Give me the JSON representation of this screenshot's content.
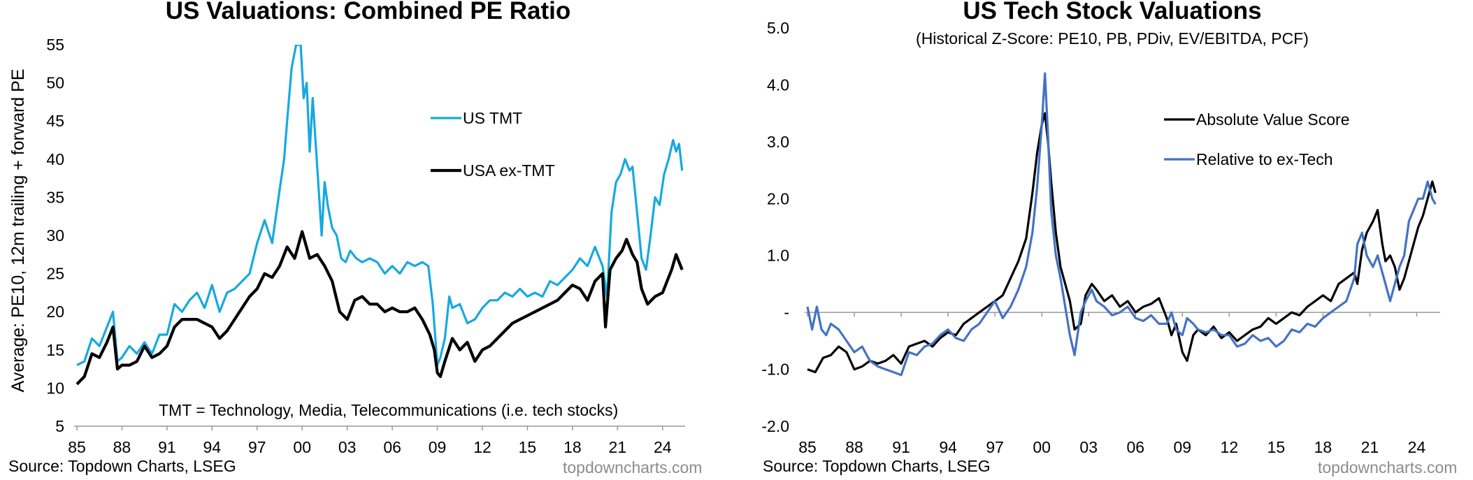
{
  "chart_data": [
    {
      "type": "line",
      "title": "US Valuations: Combined PE Ratio",
      "ylabel": "Average: PE10, 12m trailing + forward PE",
      "xlabel": "",
      "xlim": [
        1985,
        2025.5
      ],
      "ylim": [
        5,
        55
      ],
      "y_ticks": [
        5,
        10,
        15,
        20,
        25,
        30,
        35,
        40,
        45,
        50,
        55
      ],
      "y_tick_labels": [
        "5",
        "10",
        "15",
        "20",
        "25",
        "30",
        "35",
        "40",
        "45",
        "50",
        "55"
      ],
      "x_ticks": [
        1985,
        1988,
        1991,
        1994,
        1997,
        2000,
        2003,
        2006,
        2009,
        2012,
        2015,
        2018,
        2021,
        2024
      ],
      "x_tick_labels": [
        "85",
        "88",
        "91",
        "94",
        "97",
        "00",
        "03",
        "06",
        "09",
        "12",
        "15",
        "18",
        "21",
        "24"
      ],
      "grid": false,
      "legend": "upper-right",
      "annotation": "TMT = Technology, Media, Telecommunications  (i.e. tech stocks)",
      "source": "Source: Topdown Charts, LSEG",
      "brand": "topdowncharts.com",
      "series": [
        {
          "name": "US TMT",
          "color": "#16A9E1",
          "x": [
            1985.0,
            1985.5,
            1986.0,
            1986.5,
            1987.0,
            1987.4,
            1987.7,
            1988.0,
            1988.5,
            1989.0,
            1989.5,
            1990.0,
            1990.5,
            1991.0,
            1991.5,
            1992.0,
            1992.5,
            1993.0,
            1993.5,
            1994.0,
            1994.5,
            1995.0,
            1995.5,
            1996.0,
            1996.5,
            1997.0,
            1997.5,
            1998.0,
            1998.5,
            1998.8,
            1999.0,
            1999.3,
            1999.6,
            1999.9,
            2000.1,
            2000.3,
            2000.5,
            2000.7,
            2000.9,
            2001.1,
            2001.3,
            2001.5,
            2001.7,
            2002.0,
            2002.3,
            2002.6,
            2002.9,
            2003.2,
            2003.6,
            2004.0,
            2004.5,
            2005.0,
            2005.5,
            2006.0,
            2006.5,
            2007.0,
            2007.5,
            2008.0,
            2008.4,
            2008.7,
            2009.0,
            2009.2,
            2009.5,
            2009.8,
            2010.0,
            2010.5,
            2011.0,
            2011.5,
            2012.0,
            2012.5,
            2013.0,
            2013.5,
            2014.0,
            2014.5,
            2015.0,
            2015.5,
            2016.0,
            2016.5,
            2017.0,
            2017.5,
            2018.0,
            2018.5,
            2019.0,
            2019.5,
            2020.0,
            2020.3,
            2020.6,
            2020.9,
            2021.2,
            2021.5,
            2021.8,
            2022.0,
            2022.3,
            2022.6,
            2022.9,
            2023.2,
            2023.5,
            2023.8,
            2024.1,
            2024.4,
            2024.7,
            2024.9,
            2025.1,
            2025.3
          ],
          "values": [
            13.0,
            13.5,
            16.5,
            15.5,
            18.0,
            20.0,
            13.5,
            14.0,
            15.5,
            14.5,
            16.0,
            14.5,
            17.0,
            17.0,
            21.0,
            20.0,
            21.5,
            22.5,
            20.5,
            23.5,
            20.0,
            22.5,
            23.0,
            24.0,
            25.0,
            29.0,
            32.0,
            29.0,
            36.0,
            40.0,
            45.0,
            52.0,
            55.0,
            55.0,
            48.0,
            50.0,
            41.0,
            48.0,
            42.0,
            36.0,
            30.0,
            37.0,
            34.0,
            31.0,
            30.0,
            27.0,
            26.5,
            28.0,
            27.0,
            26.5,
            27.0,
            26.5,
            25.0,
            26.0,
            25.0,
            26.5,
            26.0,
            26.5,
            26.0,
            21.0,
            13.0,
            14.0,
            16.5,
            22.0,
            20.5,
            21.0,
            18.5,
            19.0,
            20.5,
            21.5,
            21.5,
            22.5,
            22.0,
            23.0,
            22.0,
            22.5,
            22.0,
            24.0,
            23.5,
            24.5,
            25.5,
            27.0,
            26.0,
            28.5,
            26.0,
            22.0,
            33.0,
            37.0,
            38.0,
            40.0,
            38.5,
            39.0,
            33.0,
            27.0,
            25.5,
            30.0,
            35.0,
            34.0,
            38.0,
            40.0,
            42.5,
            41.0,
            42.0,
            38.5
          ]
        },
        {
          "name": "USA ex-TMT",
          "color": "#000000",
          "x": [
            1985.0,
            1985.5,
            1986.0,
            1986.5,
            1987.0,
            1987.4,
            1987.7,
            1988.0,
            1988.5,
            1989.0,
            1989.5,
            1990.0,
            1990.5,
            1991.0,
            1991.5,
            1992.0,
            1992.5,
            1993.0,
            1993.5,
            1994.0,
            1994.5,
            1995.0,
            1995.5,
            1996.0,
            1996.5,
            1997.0,
            1997.5,
            1998.0,
            1998.5,
            1999.0,
            1999.5,
            2000.0,
            2000.5,
            2001.0,
            2001.5,
            2002.0,
            2002.5,
            2003.0,
            2003.5,
            2004.0,
            2004.5,
            2005.0,
            2005.5,
            2006.0,
            2006.5,
            2007.0,
            2007.5,
            2008.0,
            2008.5,
            2008.8,
            2009.0,
            2009.2,
            2009.5,
            2010.0,
            2010.5,
            2011.0,
            2011.5,
            2012.0,
            2012.5,
            2013.0,
            2013.5,
            2014.0,
            2014.5,
            2015.0,
            2015.5,
            2016.0,
            2016.5,
            2017.0,
            2017.5,
            2018.0,
            2018.5,
            2019.0,
            2019.5,
            2020.0,
            2020.2,
            2020.5,
            2020.9,
            2021.3,
            2021.6,
            2022.0,
            2022.3,
            2022.6,
            2023.0,
            2023.5,
            2024.0,
            2024.3,
            2024.6,
            2024.9,
            2025.1,
            2025.3
          ],
          "values": [
            10.5,
            11.5,
            14.5,
            14.0,
            16.0,
            18.0,
            12.5,
            13.0,
            13.0,
            13.5,
            15.5,
            14.0,
            14.5,
            15.5,
            18.0,
            19.0,
            19.0,
            19.0,
            18.5,
            18.0,
            16.5,
            17.5,
            19.0,
            20.5,
            22.0,
            23.0,
            25.0,
            24.5,
            26.0,
            28.5,
            27.0,
            30.5,
            27.0,
            27.5,
            26.0,
            24.0,
            20.0,
            19.0,
            21.5,
            22.0,
            21.0,
            21.0,
            20.0,
            20.5,
            20.0,
            20.0,
            20.5,
            19.0,
            17.0,
            15.0,
            12.0,
            11.5,
            13.5,
            16.5,
            15.0,
            16.0,
            13.5,
            15.0,
            15.5,
            16.5,
            17.5,
            18.5,
            19.0,
            19.5,
            20.0,
            20.5,
            21.0,
            21.5,
            22.5,
            23.5,
            23.0,
            21.5,
            24.0,
            25.0,
            18.0,
            25.5,
            27.0,
            28.0,
            29.5,
            27.5,
            26.5,
            23.0,
            21.0,
            22.0,
            22.5,
            24.0,
            25.5,
            27.5,
            26.5,
            25.5
          ]
        }
      ]
    },
    {
      "type": "line",
      "title": "US Tech Stock Valuations",
      "subtitle": "(Historical Z-Score: PE10, PB, PDiv, EV/EBITDA, PCF)",
      "xlabel": "",
      "ylabel": "",
      "xlim": [
        1985,
        2025.5
      ],
      "ylim": [
        -2.0,
        5.0
      ],
      "y_ticks": [
        -2,
        -1,
        0,
        1,
        2,
        3,
        4,
        5
      ],
      "y_tick_labels": [
        "-2.0",
        "-1.0",
        "-",
        "1.0",
        "2.0",
        "3.0",
        "4.0",
        "5.0"
      ],
      "x_ticks": [
        1985,
        1988,
        1991,
        1994,
        1997,
        2000,
        2003,
        2006,
        2009,
        2012,
        2015,
        2018,
        2021,
        2024
      ],
      "x_tick_labels": [
        "85",
        "88",
        "91",
        "94",
        "97",
        "00",
        "03",
        "06",
        "09",
        "12",
        "15",
        "18",
        "21",
        "24"
      ],
      "grid": false,
      "legend": "upper-right",
      "source": "Source: Topdown Charts, LSEG",
      "brand": "topdowncharts.com",
      "series": [
        {
          "name": "Absolute Value Score",
          "color": "#000000",
          "x": [
            1985.0,
            1985.5,
            1986.0,
            1986.5,
            1987.0,
            1987.5,
            1988.0,
            1988.5,
            1989.0,
            1989.5,
            1990.0,
            1990.5,
            1991.0,
            1991.5,
            1992.0,
            1992.5,
            1993.0,
            1993.5,
            1994.0,
            1994.5,
            1995.0,
            1995.5,
            1996.0,
            1996.5,
            1997.0,
            1997.5,
            1998.0,
            1998.5,
            1999.0,
            1999.4,
            1999.7,
            2000.0,
            2000.2,
            2000.4,
            2000.6,
            2000.9,
            2001.2,
            2001.5,
            2001.8,
            2002.1,
            2002.5,
            2002.8,
            2003.2,
            2003.5,
            2004.0,
            2004.5,
            2005.0,
            2005.5,
            2006.0,
            2006.5,
            2007.0,
            2007.5,
            2008.0,
            2008.3,
            2008.6,
            2009.0,
            2009.3,
            2009.7,
            2010.0,
            2010.5,
            2011.0,
            2011.5,
            2012.0,
            2012.5,
            2013.0,
            2013.5,
            2014.0,
            2014.5,
            2015.0,
            2015.5,
            2016.0,
            2016.5,
            2017.0,
            2017.5,
            2018.0,
            2018.5,
            2019.0,
            2019.5,
            2020.0,
            2020.2,
            2020.5,
            2020.8,
            2021.2,
            2021.5,
            2021.8,
            2022.0,
            2022.3,
            2022.6,
            2022.9,
            2023.2,
            2023.5,
            2023.8,
            2024.1,
            2024.4,
            2024.7,
            2025.0,
            2025.2
          ],
          "values": [
            -1.0,
            -1.05,
            -0.8,
            -0.75,
            -0.6,
            -0.7,
            -1.0,
            -0.95,
            -0.85,
            -0.9,
            -0.85,
            -0.75,
            -0.9,
            -0.6,
            -0.55,
            -0.5,
            -0.6,
            -0.45,
            -0.35,
            -0.4,
            -0.2,
            -0.1,
            0.0,
            0.1,
            0.2,
            0.3,
            0.6,
            0.9,
            1.3,
            2.1,
            2.8,
            3.3,
            3.5,
            3.0,
            2.3,
            1.4,
            0.8,
            0.5,
            0.2,
            -0.3,
            -0.2,
            0.3,
            0.5,
            0.4,
            0.2,
            0.3,
            0.1,
            0.2,
            0.0,
            0.1,
            0.15,
            0.25,
            -0.1,
            -0.4,
            -0.2,
            -0.7,
            -0.85,
            -0.4,
            -0.3,
            -0.4,
            -0.25,
            -0.45,
            -0.35,
            -0.5,
            -0.4,
            -0.3,
            -0.25,
            -0.1,
            -0.2,
            -0.1,
            0.0,
            -0.05,
            0.1,
            0.2,
            0.3,
            0.2,
            0.5,
            0.6,
            0.7,
            0.5,
            1.1,
            1.4,
            1.6,
            1.8,
            1.2,
            0.9,
            1.0,
            0.8,
            0.4,
            0.6,
            0.9,
            1.2,
            1.5,
            1.7,
            2.0,
            2.3,
            2.1
          ]
        },
        {
          "name": "Relative to ex-Tech",
          "color": "#4472C4",
          "x": [
            1985.0,
            1985.3,
            1985.6,
            1985.9,
            1986.2,
            1986.5,
            1987.0,
            1987.5,
            1988.0,
            1988.5,
            1989.0,
            1989.5,
            1990.0,
            1990.5,
            1991.0,
            1991.5,
            1992.0,
            1992.5,
            1993.0,
            1993.5,
            1994.0,
            1994.5,
            1995.0,
            1995.5,
            1996.0,
            1996.5,
            1997.0,
            1997.5,
            1998.0,
            1998.5,
            1999.0,
            1999.4,
            1999.7,
            2000.0,
            2000.2,
            2000.4,
            2000.6,
            2000.9,
            2001.2,
            2001.5,
            2001.8,
            2002.1,
            2002.5,
            2002.8,
            2003.2,
            2003.5,
            2004.0,
            2004.5,
            2005.0,
            2005.5,
            2006.0,
            2006.5,
            2007.0,
            2007.5,
            2008.0,
            2008.3,
            2008.6,
            2009.0,
            2009.3,
            2009.7,
            2010.0,
            2010.5,
            2011.0,
            2011.5,
            2012.0,
            2012.5,
            2013.0,
            2013.5,
            2014.0,
            2014.5,
            2015.0,
            2015.5,
            2016.0,
            2016.5,
            2017.0,
            2017.5,
            2018.0,
            2018.5,
            2019.0,
            2019.5,
            2020.0,
            2020.2,
            2020.5,
            2020.8,
            2021.2,
            2021.5,
            2021.8,
            2022.0,
            2022.3,
            2022.6,
            2022.9,
            2023.2,
            2023.5,
            2023.8,
            2024.1,
            2024.4,
            2024.7,
            2025.0,
            2025.2
          ],
          "values": [
            0.1,
            -0.3,
            0.1,
            -0.3,
            -0.4,
            -0.2,
            -0.3,
            -0.5,
            -0.7,
            -0.6,
            -0.85,
            -0.95,
            -1.0,
            -1.05,
            -1.1,
            -0.7,
            -0.75,
            -0.6,
            -0.55,
            -0.4,
            -0.3,
            -0.45,
            -0.5,
            -0.3,
            -0.2,
            0.0,
            0.2,
            -0.1,
            0.1,
            0.4,
            0.8,
            1.4,
            2.2,
            3.3,
            4.2,
            3.1,
            1.8,
            1.0,
            0.6,
            0.1,
            -0.4,
            -0.75,
            0.0,
            0.2,
            0.4,
            0.2,
            0.1,
            -0.05,
            0.0,
            0.1,
            -0.1,
            -0.15,
            -0.05,
            -0.2,
            -0.2,
            0.0,
            -0.3,
            -0.4,
            -0.1,
            -0.2,
            -0.3,
            -0.35,
            -0.3,
            -0.4,
            -0.4,
            -0.6,
            -0.55,
            -0.4,
            -0.5,
            -0.45,
            -0.6,
            -0.5,
            -0.3,
            -0.35,
            -0.2,
            -0.25,
            -0.1,
            0.0,
            0.1,
            0.2,
            0.6,
            1.2,
            1.4,
            1.0,
            0.8,
            1.0,
            0.7,
            0.5,
            0.2,
            0.5,
            0.8,
            1.0,
            1.6,
            1.8,
            2.0,
            2.0,
            2.3,
            2.0,
            1.9
          ]
        }
      ]
    }
  ]
}
